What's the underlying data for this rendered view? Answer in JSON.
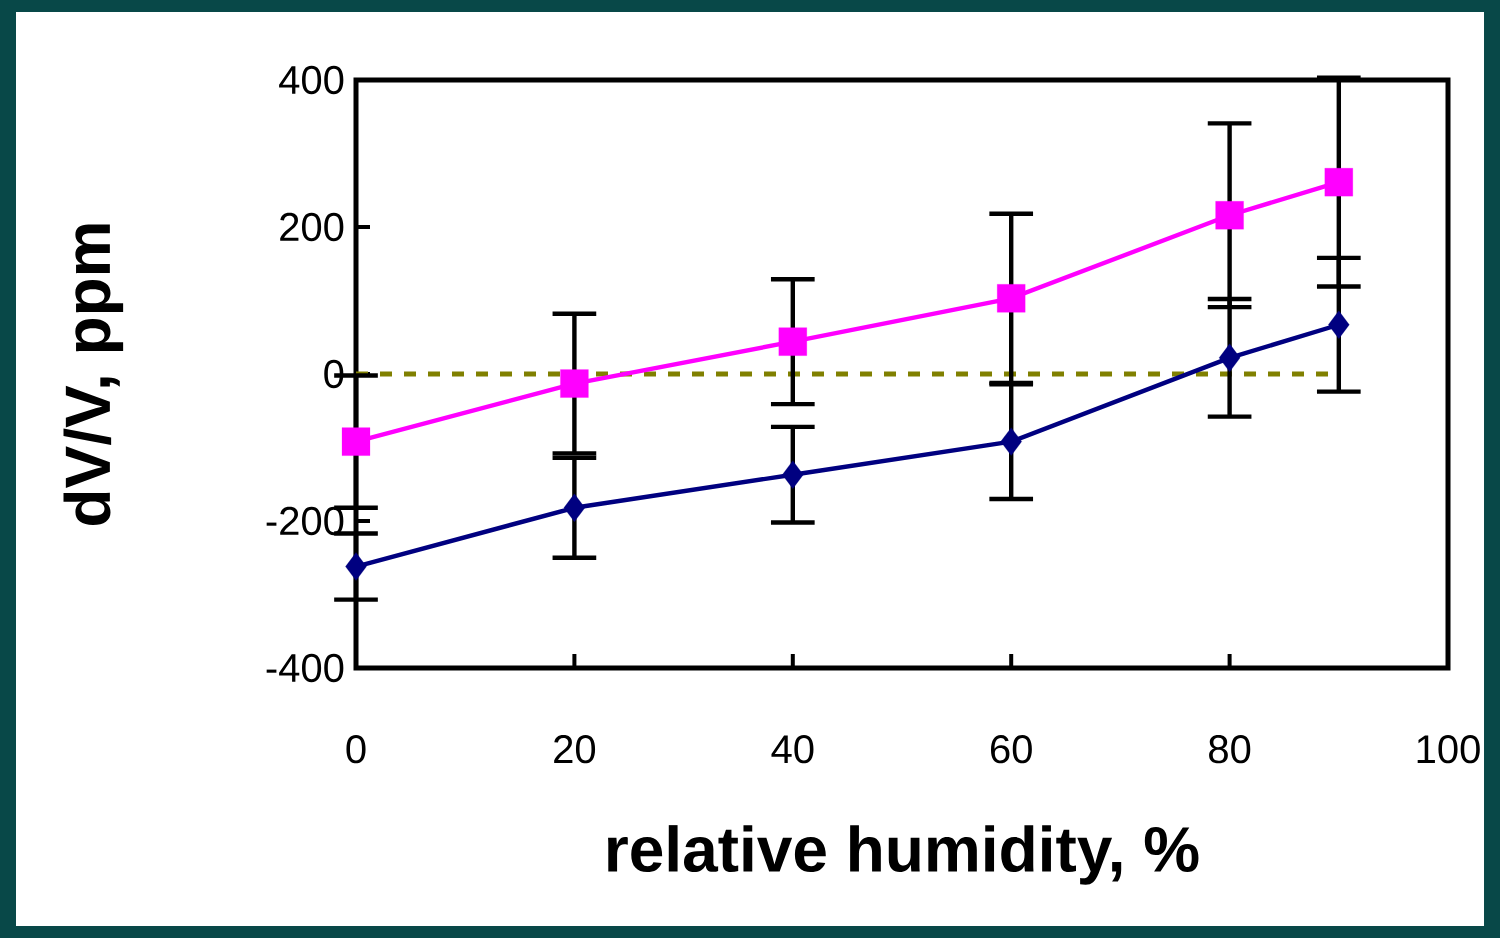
{
  "chart_data": {
    "type": "line",
    "xlabel": "relative humidity, %",
    "ylabel": "dV/V, ppm",
    "xlim": [
      0,
      100
    ],
    "ylim": [
      -400,
      400
    ],
    "xticks": [
      0,
      20,
      40,
      60,
      80,
      100
    ],
    "yticks": [
      -400,
      -200,
      0,
      200,
      400
    ],
    "grid": false,
    "series": [
      {
        "color": "#ff00ff",
        "marker": "square",
        "x": [
          0,
          20,
          40,
          60,
          80,
          90
        ],
        "values": [
          -92,
          -13,
          44,
          103,
          216,
          261
        ],
        "errors": [
          90,
          95,
          85,
          115,
          125,
          142
        ]
      },
      {
        "color": "#000080",
        "marker": "diamond",
        "x": [
          0,
          20,
          40,
          60,
          80,
          90
        ],
        "values": [
          -262,
          -182,
          -137,
          -92,
          22,
          67
        ],
        "errors": [
          45,
          68,
          65,
          78,
          80,
          91
        ]
      }
    ],
    "ref_lines": [
      {
        "axis": "y",
        "value": 0,
        "color": "#808000",
        "line_style": "dashed"
      }
    ]
  }
}
